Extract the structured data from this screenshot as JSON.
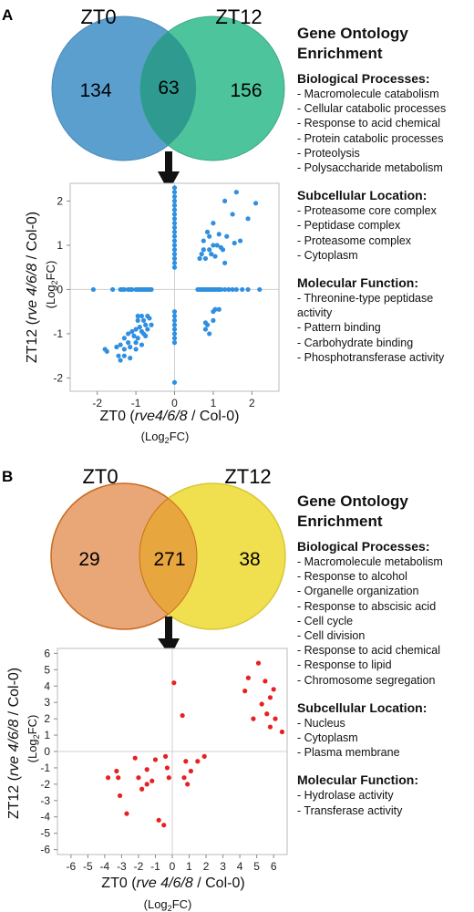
{
  "panels": [
    {
      "letter": "A",
      "venn": {
        "left_label": "ZT0",
        "right_label": "ZT12",
        "left_only": "134",
        "overlap": "63",
        "right_only": "156",
        "left_color": "#5b9fcf",
        "right_color": "#4ec49c",
        "overlap_color": "#2f9a8f"
      },
      "go": {
        "title_line1": "Gene Ontology",
        "title_line2": "Enrichment",
        "sections": [
          {
            "heading": "Biological Processes:",
            "items": [
              "- Macromolecule catabolism",
              "- Cellular catabolic processes",
              "- Response to acid chemical",
              "- Protein catabolic processes",
              "- Proteolysis",
              "- Polysaccharide metabolism"
            ]
          },
          {
            "heading": "Subcellular Location:",
            "items": [
              "- Proteasome core complex",
              "- Peptidase complex",
              "- Proteasome complex",
              "- Cytoplasm"
            ]
          },
          {
            "heading": "Molecular Function:",
            "items": [
              "- Threonine-type peptidase",
              "activity",
              "- Pattern binding",
              "- Carbohydrate binding",
              "- Phosphotransferase activity"
            ]
          }
        ]
      },
      "axis_text": {
        "x_pre": "ZT0 (",
        "x_it": "rve4/6/8",
        "x_post": " / Col-0)",
        "y_pre": "ZT12 (",
        "y_it": "rve 4/6/8",
        "y_post": " / Col-0)",
        "unit_pre": "(Log",
        "unit_sub": "2",
        "unit_post": "FC)"
      }
    },
    {
      "letter": "B",
      "venn": {
        "left_label": "ZT0",
        "right_label": "ZT12",
        "left_only": "29",
        "overlap": "271",
        "right_only": "38",
        "left_color": "#e9a777",
        "right_color": "#f0df4e",
        "overlap_color": "#e8a63f"
      },
      "go": {
        "title_line1": "Gene Ontology",
        "title_line2": "Enrichment",
        "sections": [
          {
            "heading": "Biological Processes:",
            "items": [
              "- Macromolecule metabolism",
              "- Response to alcohol",
              "- Organelle organization",
              "- Response to abscisic acid",
              "- Cell cycle",
              "- Cell division",
              "- Response to acid chemical",
              "- Response to lipid",
              "- Chromosome segregation"
            ]
          },
          {
            "heading": "Subcellular Location:",
            "items": [
              "- Nucleus",
              "- Cytoplasm",
              "- Plasma membrane"
            ]
          },
          {
            "heading": "Molecular Function:",
            "items": [
              "- Hydrolase activity",
              "- Transferase activity"
            ]
          }
        ]
      },
      "axis_text": {
        "x_pre": "ZT0 (",
        "x_it": "rve 4/6/8",
        "x_post": " / Col-0)",
        "y_pre": "ZT12 (",
        "y_it": "rve 4/6/8",
        "y_post": " / Col-0)",
        "unit_pre": "(Log",
        "unit_sub": "2",
        "unit_post": "FC)"
      }
    }
  ],
  "chart_data": [
    {
      "type": "scatter",
      "panel": "A",
      "point_color": "#2f8fe0",
      "xlim": [
        -2.7,
        2.7
      ],
      "ylim": [
        -2.3,
        2.4
      ],
      "xticks": [
        -2,
        -1,
        0,
        1,
        2
      ],
      "yticks": [
        -2,
        -1,
        0,
        1,
        2
      ],
      "points": [
        [
          0,
          2.3
        ],
        [
          0,
          2.2
        ],
        [
          0,
          2.1
        ],
        [
          0,
          2.0
        ],
        [
          0,
          1.9
        ],
        [
          0,
          1.8
        ],
        [
          0,
          1.7
        ],
        [
          0,
          1.6
        ],
        [
          0,
          1.5
        ],
        [
          0,
          1.4
        ],
        [
          0,
          1.3
        ],
        [
          0,
          1.2
        ],
        [
          0,
          1.1
        ],
        [
          0,
          1.0
        ],
        [
          0,
          0.9
        ],
        [
          0,
          0.8
        ],
        [
          0,
          0.7
        ],
        [
          0,
          0.6
        ],
        [
          0,
          0.5
        ],
        [
          0,
          -0.5
        ],
        [
          0,
          -0.6
        ],
        [
          0,
          -0.7
        ],
        [
          0,
          -0.8
        ],
        [
          0,
          -0.9
        ],
        [
          0,
          -1.0
        ],
        [
          0,
          -1.1
        ],
        [
          0,
          -1.2
        ],
        [
          0,
          -2.1
        ],
        [
          -2.1,
          0
        ],
        [
          -1.6,
          0
        ],
        [
          -1.4,
          0
        ],
        [
          -1.35,
          0
        ],
        [
          -1.3,
          0
        ],
        [
          -1.2,
          0
        ],
        [
          -1.15,
          0
        ],
        [
          -1.1,
          0
        ],
        [
          -1.0,
          0
        ],
        [
          -0.95,
          0
        ],
        [
          -0.9,
          0
        ],
        [
          -0.85,
          0
        ],
        [
          -0.8,
          0
        ],
        [
          -0.75,
          0
        ],
        [
          -0.7,
          0
        ],
        [
          -0.65,
          0
        ],
        [
          -0.6,
          0
        ],
        [
          0.6,
          0
        ],
        [
          0.65,
          0
        ],
        [
          0.7,
          0
        ],
        [
          0.75,
          0
        ],
        [
          0.8,
          0
        ],
        [
          0.85,
          0
        ],
        [
          0.9,
          0
        ],
        [
          0.95,
          0
        ],
        [
          1.0,
          0
        ],
        [
          1.05,
          0
        ],
        [
          1.1,
          0
        ],
        [
          1.15,
          0
        ],
        [
          1.2,
          0
        ],
        [
          1.3,
          0
        ],
        [
          1.4,
          0
        ],
        [
          1.5,
          0
        ],
        [
          1.6,
          0
        ],
        [
          1.75,
          0
        ],
        [
          1.9,
          0
        ],
        [
          2.2,
          0
        ],
        [
          1.6,
          2.2
        ],
        [
          1.3,
          2.0
        ],
        [
          2.1,
          1.95
        ],
        [
          1.5,
          1.7
        ],
        [
          1.9,
          1.6
        ],
        [
          1.0,
          1.5
        ],
        [
          0.85,
          1.3
        ],
        [
          1.15,
          1.25
        ],
        [
          1.35,
          1.2
        ],
        [
          1.7,
          1.1
        ],
        [
          1.55,
          1.05
        ],
        [
          1.0,
          1.0
        ],
        [
          1.1,
          1.0
        ],
        [
          1.2,
          0.95
        ],
        [
          1.25,
          0.9
        ],
        [
          0.75,
          0.9
        ],
        [
          0.9,
          0.9
        ],
        [
          0.7,
          0.8
        ],
        [
          0.95,
          0.8
        ],
        [
          1.05,
          0.75
        ],
        [
          0.65,
          0.7
        ],
        [
          0.8,
          0.7
        ],
        [
          0.75,
          1.1
        ],
        [
          1.3,
          0.6
        ],
        [
          0.9,
          1.2
        ],
        [
          1.15,
          -0.45
        ],
        [
          1.0,
          -0.7
        ],
        [
          0.8,
          -0.75
        ],
        [
          0.85,
          -0.8
        ],
        [
          0.8,
          -0.9
        ],
        [
          0.9,
          -1.0
        ],
        [
          1.05,
          -0.45
        ],
        [
          1.0,
          -0.5
        ],
        [
          -0.95,
          -0.6
        ],
        [
          -0.85,
          -0.6
        ],
        [
          -0.7,
          -0.6
        ],
        [
          -0.95,
          -0.7
        ],
        [
          -0.8,
          -0.7
        ],
        [
          -0.65,
          -0.65
        ],
        [
          -0.75,
          -0.8
        ],
        [
          -0.9,
          -0.85
        ],
        [
          -0.6,
          -0.8
        ],
        [
          -1.0,
          -0.9
        ],
        [
          -0.7,
          -0.9
        ],
        [
          -1.1,
          -0.95
        ],
        [
          -0.85,
          -0.95
        ],
        [
          -0.8,
          -1.0
        ],
        [
          -1.2,
          -1.0
        ],
        [
          -1.05,
          -1.05
        ],
        [
          -1.3,
          -1.1
        ],
        [
          -0.75,
          -1.05
        ],
        [
          -0.95,
          -1.1
        ],
        [
          -1.2,
          -1.2
        ],
        [
          -1.0,
          -1.2
        ],
        [
          -1.4,
          -1.25
        ],
        [
          -0.85,
          -1.25
        ],
        [
          -1.5,
          -1.3
        ],
        [
          -1.15,
          -1.3
        ],
        [
          -1.3,
          -1.35
        ],
        [
          -1.0,
          -1.35
        ],
        [
          -1.8,
          -1.35
        ],
        [
          -1.75,
          -1.4
        ],
        [
          -1.45,
          -1.5
        ],
        [
          -1.3,
          -1.5
        ],
        [
          -1.4,
          -1.6
        ],
        [
          -1.15,
          -1.55
        ]
      ]
    },
    {
      "type": "scatter",
      "panel": "B",
      "point_color": "#e82020",
      "xlim": [
        -6.8,
        6.8
      ],
      "ylim": [
        -6.3,
        6.3
      ],
      "xticks": [
        -6,
        -5,
        -4,
        -3,
        -2,
        -1,
        0,
        1,
        2,
        3,
        4,
        5,
        6
      ],
      "yticks": [
        -6,
        -5,
        -4,
        -3,
        -2,
        -1,
        0,
        1,
        2,
        3,
        4,
        5,
        6
      ],
      "points": [
        [
          -3.8,
          -1.6
        ],
        [
          -3.3,
          -1.2
        ],
        [
          -3.2,
          -1.6
        ],
        [
          -3.1,
          -2.7
        ],
        [
          -2.7,
          -3.8
        ],
        [
          -2.2,
          -0.4
        ],
        [
          -1.8,
          -2.3
        ],
        [
          -2.0,
          -1.6
        ],
        [
          -1.5,
          -1.1
        ],
        [
          -1.5,
          -2.0
        ],
        [
          -1.2,
          -1.8
        ],
        [
          -1.0,
          -0.5
        ],
        [
          -0.8,
          -4.2
        ],
        [
          -0.5,
          -4.5
        ],
        [
          -0.4,
          -0.3
        ],
        [
          -0.3,
          -1.0
        ],
        [
          -0.2,
          -1.6
        ],
        [
          0.1,
          4.2
        ],
        [
          0.6,
          2.2
        ],
        [
          0.8,
          -0.6
        ],
        [
          1.1,
          -1.2
        ],
        [
          0.9,
          -2.0
        ],
        [
          0.7,
          -1.6
        ],
        [
          1.5,
          -0.6
        ],
        [
          1.9,
          -0.3
        ],
        [
          4.3,
          3.7
        ],
        [
          4.5,
          4.5
        ],
        [
          5.1,
          5.4
        ],
        [
          5.5,
          4.3
        ],
        [
          6.0,
          3.8
        ],
        [
          5.8,
          3.3
        ],
        [
          5.3,
          2.9
        ],
        [
          5.6,
          2.3
        ],
        [
          6.1,
          2.0
        ],
        [
          4.8,
          2.0
        ],
        [
          6.5,
          1.2
        ],
        [
          5.8,
          1.5
        ]
      ]
    }
  ]
}
